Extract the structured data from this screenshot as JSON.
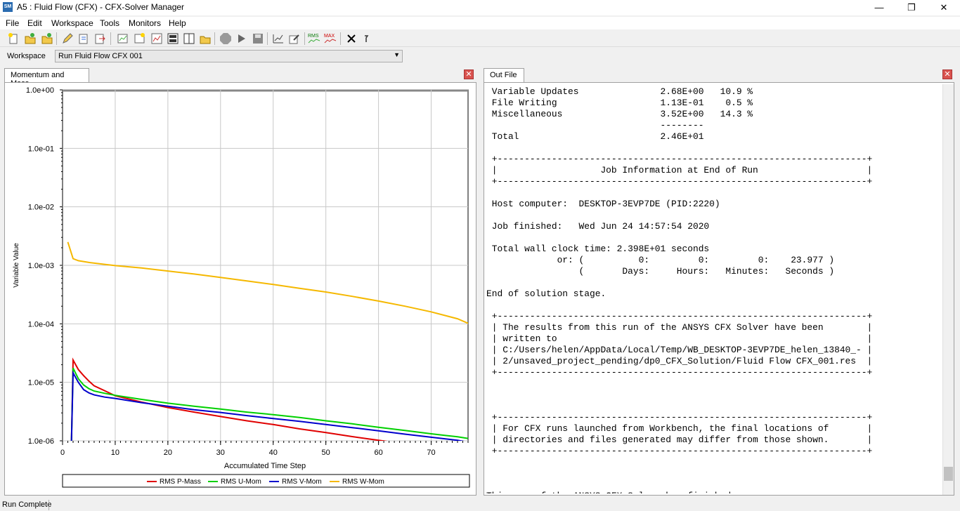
{
  "window": {
    "icon_label": "SM",
    "title": "A5 : Fluid Flow (CFX) - CFX-Solver Manager",
    "minimize": "—",
    "restore": "❐",
    "close": "✕"
  },
  "menu": [
    "File",
    "Edit",
    "Workspace",
    "Tools",
    "Monitors",
    "Help"
  ],
  "toolbar_icons": [
    "new-run-icon",
    "open-icon",
    "open-results-icon",
    "edit-icon",
    "edit-run-icon",
    "export-icon",
    "monitor-icon",
    "plot-icon",
    "chart-icon",
    "layout-icon",
    "split-icon",
    "folder-icon",
    "stop-icon",
    "play-icon",
    "save-icon",
    "plot-edit-icon",
    "edit-pencil-icon",
    "rms-icon",
    "max-icon",
    "close-x-icon",
    "arrow-icon"
  ],
  "toolbar_text": {
    "rms": "RMS",
    "max": "MAX"
  },
  "workspace": {
    "label": "Workspace",
    "value": "Run Fluid Flow CFX 001"
  },
  "left_panel": {
    "tab": "Momentum and Mass",
    "close": "✕"
  },
  "right_panel": {
    "tab": "Out File",
    "close": "✕"
  },
  "chart_data": {
    "type": "line",
    "title": "Momentum and Mass",
    "xlabel": "Accumulated Time Step",
    "ylabel": "Variable Value",
    "yscale": "log",
    "xlim": [
      0,
      77
    ],
    "ylim": [
      1e-06,
      1
    ],
    "x_ticks": [
      "0",
      "10",
      "20",
      "30",
      "40",
      "50",
      "60",
      "70"
    ],
    "y_ticks": [
      "1.0e+00",
      "1.0e-01",
      "1.0e-02",
      "1.0e-03",
      "1.0e-04",
      "1.0e-05",
      "1.0e-06"
    ],
    "legend_position": "bottom",
    "series": [
      {
        "name": "RMS P-Mass",
        "color": "#e00000",
        "x": [
          1.7,
          2,
          3,
          4,
          5,
          6,
          8,
          10,
          15,
          20,
          25,
          30,
          35,
          40,
          45,
          50,
          55,
          60,
          65,
          70,
          75
        ],
        "y": [
          1e-06,
          2.4e-05,
          1.65e-05,
          1.3e-05,
          1.05e-05,
          8.7e-06,
          7.2e-06,
          5.9e-06,
          4.6e-06,
          3.7e-06,
          3.1e-06,
          2.6e-06,
          2.2e-06,
          1.9e-06,
          1.6e-06,
          1.38e-06,
          1.18e-06,
          1.02e-06,
          8.9e-07,
          7.8e-07,
          7e-07
        ]
      },
      {
        "name": "RMS U-Mom",
        "color": "#00d000",
        "x": [
          1.7,
          2,
          3,
          4,
          5,
          6,
          8,
          10,
          15,
          20,
          25,
          30,
          35,
          40,
          45,
          50,
          55,
          60,
          65,
          70,
          75,
          77
        ],
        "y": [
          1e-06,
          1.75e-05,
          1.15e-05,
          9e-06,
          7.8e-06,
          7.1e-06,
          6.5e-06,
          6e-06,
          5.1e-06,
          4.4e-06,
          3.9e-06,
          3.5e-06,
          3.1e-06,
          2.8e-06,
          2.5e-06,
          2.2e-06,
          1.95e-06,
          1.7e-06,
          1.5e-06,
          1.32e-06,
          1.17e-06,
          1.1e-06
        ]
      },
      {
        "name": "RMS V-Mom",
        "color": "#0000cc",
        "x": [
          1.7,
          2,
          3,
          4,
          5,
          6,
          8,
          10,
          15,
          20,
          25,
          30,
          35,
          40,
          45,
          50,
          55,
          60,
          65,
          70,
          75,
          77
        ],
        "y": [
          1e-06,
          1.45e-05,
          1e-05,
          7.5e-06,
          6.6e-06,
          6.1e-06,
          5.6e-06,
          5.3e-06,
          4.5e-06,
          3.9e-06,
          3.4e-06,
          3.05e-06,
          2.7e-06,
          2.4e-06,
          2.15e-06,
          1.9e-06,
          1.68e-06,
          1.48e-06,
          1.3e-06,
          1.15e-06,
          1.02e-06,
          9.5e-07
        ]
      },
      {
        "name": "RMS W-Mom",
        "color": "#f5b800",
        "x": [
          1,
          2,
          3,
          5,
          8,
          10,
          15,
          20,
          25,
          30,
          35,
          40,
          45,
          50,
          55,
          60,
          65,
          70,
          75,
          77
        ],
        "y": [
          0.0025,
          0.0013,
          0.0012,
          0.00112,
          0.00104,
          0.00099,
          0.0009,
          0.0008,
          0.00071,
          0.00062,
          0.00054,
          0.00047,
          0.000405,
          0.00035,
          0.000295,
          0.000245,
          0.0002,
          0.00016,
          0.000122,
          0.000102
        ]
      }
    ]
  },
  "out_lines": [
    " Variable Updates               2.68E+00   10.9 %",
    " File Writing                   1.13E-01    0.5 %",
    " Miscellaneous                  3.52E+00   14.3 %",
    "                                --------",
    " Total                          2.46E+01",
    "",
    " +--------------------------------------------------------------------+",
    " |                   Job Information at End of Run                    |",
    " +--------------------------------------------------------------------+",
    "",
    " Host computer:  DESKTOP-3EVP7DE (PID:2220)",
    "",
    " Job finished:   Wed Jun 24 14:57:54 2020",
    "",
    " Total wall clock time: 2.398E+01 seconds",
    "             or: (          0:         0:         0:    23.977 )",
    "                 (       Days:     Hours:   Minutes:   Seconds )",
    "",
    "End of solution stage.",
    "",
    " +--------------------------------------------------------------------+",
    " | The results from this run of the ANSYS CFX Solver have been        |",
    " | written to                                                         |",
    " | C:/Users/helen/AppData/Local/Temp/WB_DESKTOP-3EVP7DE_helen_13840_- |",
    " | 2/unsaved_project_pending/dp0_CFX_Solution/Fluid Flow CFX_001.res  |",
    " +--------------------------------------------------------------------+",
    "",
    "",
    "",
    " +--------------------------------------------------------------------+",
    " | For CFX runs launched from Workbench, the final locations of       |",
    " | directories and files generated may differ from those shown.       |",
    " +--------------------------------------------------------------------+",
    "",
    "",
    "",
    "This run of the ANSYS CFX Solver has finished."
  ],
  "status": {
    "text": "Run Complete"
  }
}
